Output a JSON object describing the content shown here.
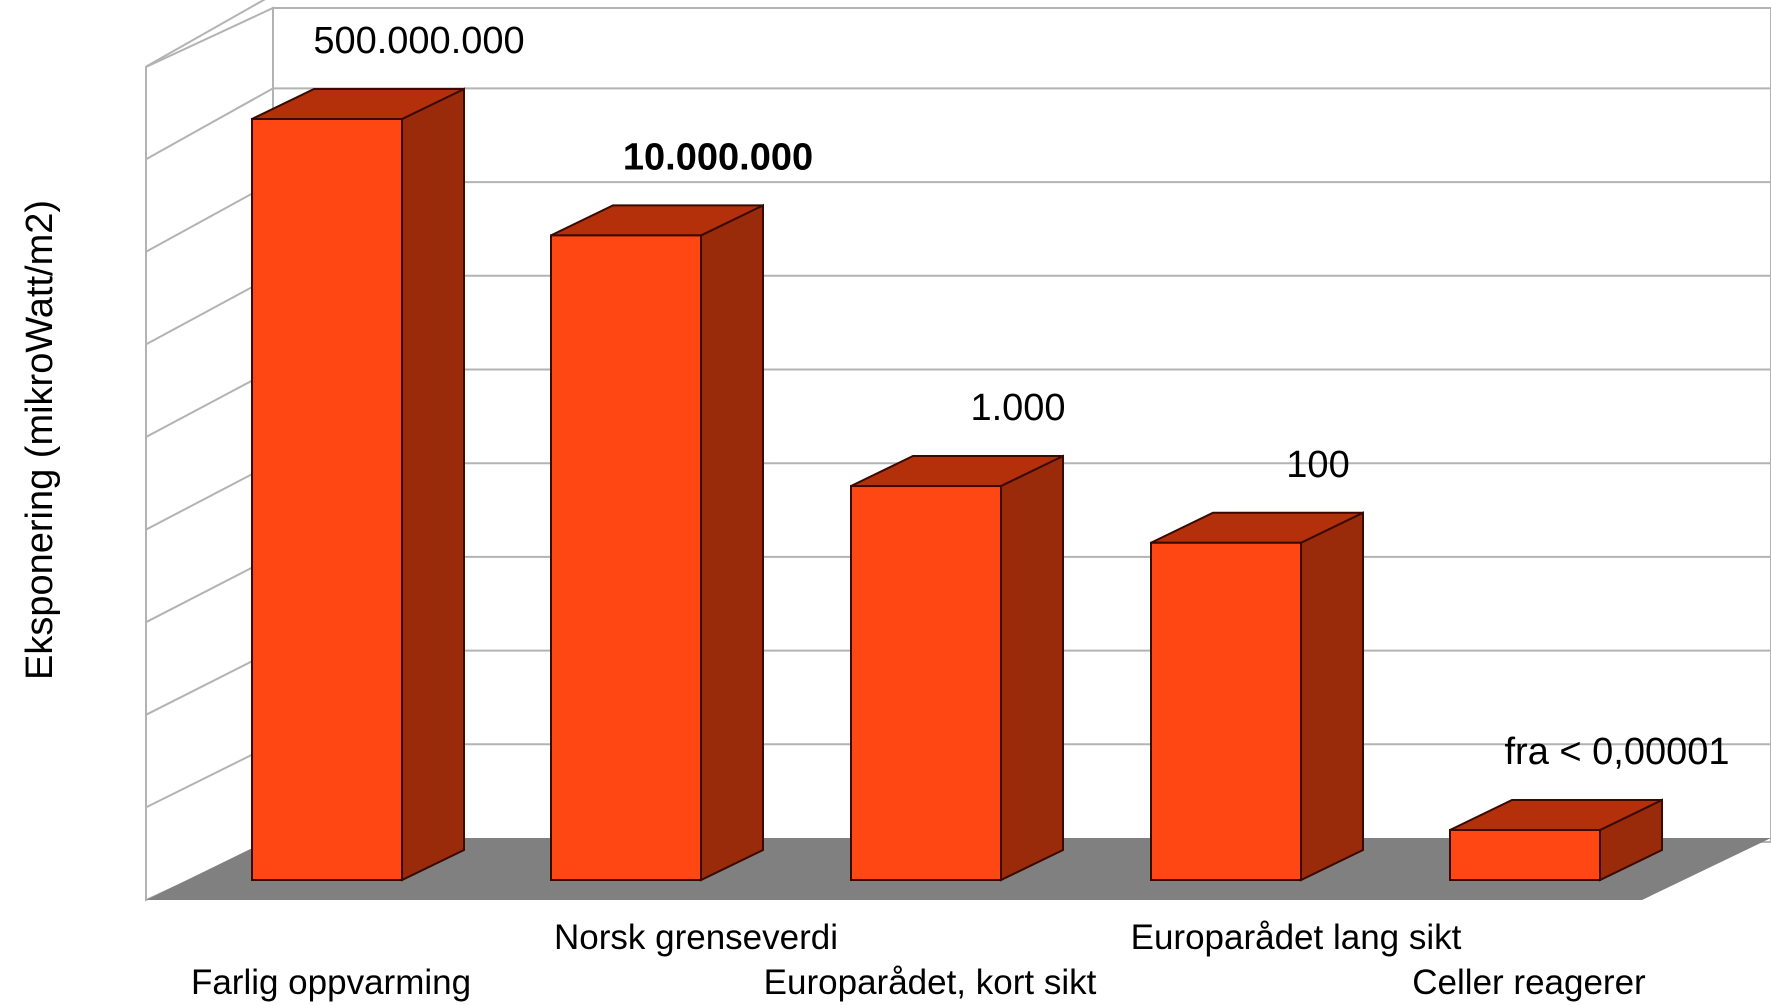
{
  "chart_data": {
    "type": "bar",
    "title": "",
    "xlabel": "",
    "ylabel": "Eksponering (mikroWatt/m2)",
    "yscale": "log",
    "grid": true,
    "legend": "none",
    "categories": [
      "Farlig oppvarming",
      "Norsk grenseverdi",
      "Europarådet, kort sikt",
      "Europarådet lang sikt",
      "Celler reagerer"
    ],
    "values": [
      500000000,
      10000000,
      1000,
      100,
      1e-05
    ],
    "data_labels": [
      "500.000.000",
      "10.000.000",
      "1.000",
      "100",
      "fra < 0,00001"
    ],
    "bold_labels": [
      false,
      true,
      false,
      false,
      false
    ],
    "colors": {
      "front": "#ff4713",
      "top": "#b3300b",
      "side": "#992a0a",
      "floor": "#808080",
      "grid": "#b3b3b3"
    }
  }
}
